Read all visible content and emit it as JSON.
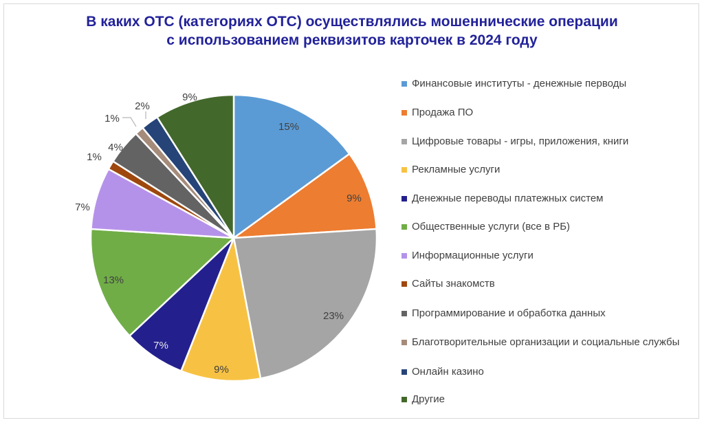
{
  "chart_data": {
    "type": "pie",
    "title_line1": "В каких ОТС (категориях ОТС) осуществлялись мошеннические операции",
    "title_line2": "с использованием реквизитов карточек в 2024 году",
    "legend_position": "right",
    "slices": [
      {
        "label": "Финансовые институты - денежные перводы",
        "value": 15,
        "text": "15%",
        "color": "#5b9bd5"
      },
      {
        "label": "Продажа ПО",
        "value": 9,
        "text": "9%",
        "color": "#ed7d31"
      },
      {
        "label": "Цифровые товары - игры, приложения, книги",
        "value": 23,
        "text": "23%",
        "color": "#a5a5a5"
      },
      {
        "label": "Рекламные услуги",
        "value": 9,
        "text": "9%",
        "color": "#f7c244"
      },
      {
        "label": "Денежные переводы платежных систем",
        "value": 7,
        "text": "7%",
        "color": "#23208e"
      },
      {
        "label": "Общественные услуги (все в РБ)",
        "value": 13,
        "text": "13%",
        "color": "#70ad47"
      },
      {
        "label": "Информационные услуги",
        "value": 7,
        "text": "7%",
        "color": "#b592ea"
      },
      {
        "label": "Сайты знакомств",
        "value": 1,
        "text": "1%",
        "color": "#9e480e"
      },
      {
        "label": "Программирование и обработка данных",
        "value": 4,
        "text": "4%",
        "color": "#636363"
      },
      {
        "label": "Благотворительные организации и социальные службы",
        "value": 1,
        "text": "1%",
        "color": "#a58b7a"
      },
      {
        "label": "Онлайн казино",
        "value": 2,
        "text": "2%",
        "color": "#264478"
      },
      {
        "label": "Другие",
        "value": 9,
        "text": "9%",
        "color": "#43682b"
      }
    ]
  }
}
